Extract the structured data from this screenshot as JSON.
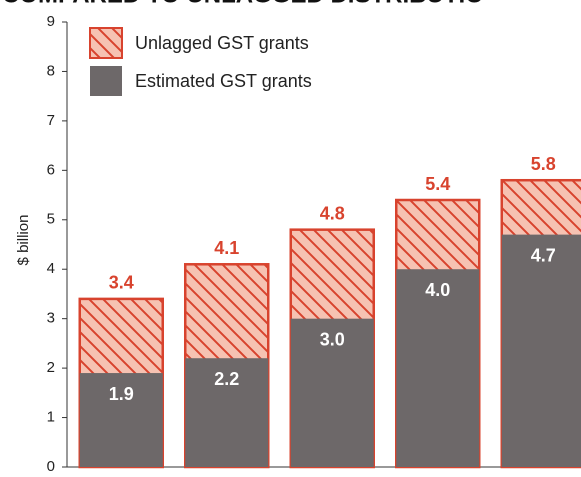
{
  "chart_data": {
    "type": "bar",
    "title": "COMPARED TO UNLAGGED DISTRIBUTIO",
    "ylabel": "$ billion",
    "categories": [
      null,
      null,
      null,
      null,
      null
    ],
    "series": [
      {
        "name": "Unlagged GST grants",
        "color": "#f6c2b2",
        "edgecolor": "#d8432e",
        "pattern": "hatch",
        "values": [
          3.4,
          4.1,
          4.8,
          5.4,
          5.8
        ],
        "value_labels": [
          "3.4",
          "4.1",
          "4.8",
          "5.4",
          "5.8"
        ]
      },
      {
        "name": "Estimated GST grants",
        "color": "#6d6869",
        "values": [
          1.9,
          2.2,
          3.0,
          4.0,
          4.7
        ],
        "value_labels": [
          "1.9",
          "2.2",
          "3.0",
          "4.0",
          "4.7"
        ]
      }
    ],
    "ylim": [
      0,
      9
    ],
    "yticks": [
      0,
      1,
      2,
      3,
      4,
      5,
      6,
      7,
      8,
      9
    ],
    "grid": false,
    "legend": "top-left"
  }
}
